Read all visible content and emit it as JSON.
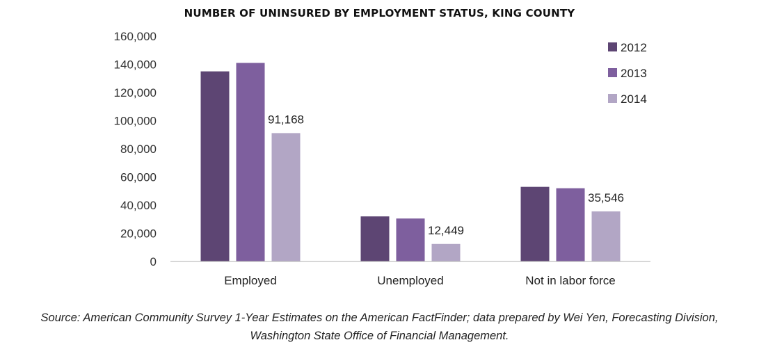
{
  "chart_data": {
    "type": "bar",
    "title": "NUMBER OF UNINSURED BY EMPLOYMENT STATUS, KING COUNTY",
    "categories": [
      "Employed",
      "Unemployed",
      "Not in labor force"
    ],
    "series": [
      {
        "name": "2012",
        "color": "#5d4573",
        "values": [
          135000,
          32000,
          53000
        ],
        "labels": [
          "",
          "",
          ""
        ]
      },
      {
        "name": "2013",
        "color": "#7e5f9e",
        "values": [
          141000,
          30500,
          52000
        ],
        "labels": [
          "",
          "",
          ""
        ]
      },
      {
        "name": "2014",
        "color": "#b2a6c5",
        "values": [
          91168,
          12449,
          35546
        ],
        "labels": [
          "91,168",
          "12,449",
          "35,546"
        ]
      }
    ],
    "ylim": [
      0,
      160000
    ],
    "yticks": [
      0,
      20000,
      40000,
      60000,
      80000,
      100000,
      120000,
      140000,
      160000
    ],
    "ytick_labels": [
      "0",
      "20,000",
      "40,000",
      "60,000",
      "80,000",
      "100,000",
      "120,000",
      "140,000",
      "160,000"
    ],
    "grid": false,
    "legend_position": "top-right"
  },
  "source": {
    "line1": "Source: American Community Survey 1-Year Estimates on the American FactFinder; data prepared by Wei Yen, Forecasting Division,",
    "line2": "Washington State Office of Financial Management."
  }
}
